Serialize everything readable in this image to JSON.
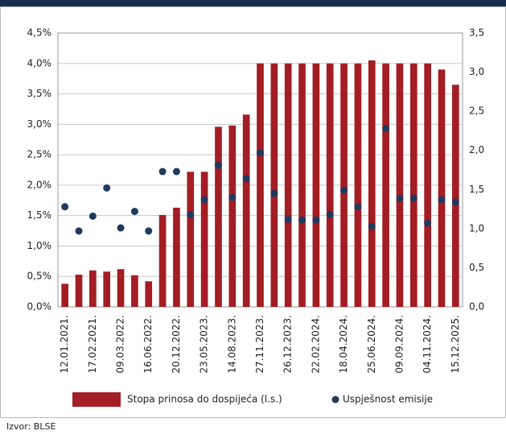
{
  "chart_data": {
    "type": "bar",
    "categories": [
      "12.01.2021.",
      null,
      "17.02.2021.",
      null,
      "09.03.2022.",
      null,
      "16.06.2022.",
      null,
      "20.12.2022.",
      null,
      "23.05.2023.",
      null,
      "14.08.2023.",
      null,
      "27.11.2023.",
      null,
      "26.12.2023.",
      null,
      "22.02.2024.",
      null,
      "18.04.2024.",
      null,
      "25.06.2024.",
      null,
      "09.09.2024.",
      null,
      "04.11.2024.",
      null,
      "15.12.2025."
    ],
    "series": [
      {
        "name": "Stopa prinosa do dospijeća (l.s.)",
        "type": "bar",
        "axis": "y",
        "color": "#a31d24",
        "values": [
          0.38,
          0.53,
          0.6,
          0.58,
          0.62,
          0.52,
          0.42,
          1.51,
          1.63,
          2.22,
          2.22,
          2.96,
          2.98,
          3.16,
          4.0,
          4.0,
          4.0,
          4.0,
          4.0,
          4.0,
          4.0,
          4.0,
          4.05,
          4.0,
          4.0,
          4.0,
          4.0,
          3.9,
          3.65
        ]
      },
      {
        "name": "Uspješnost emisije",
        "type": "scatter",
        "axis": "y2",
        "color": "#1f3a5f",
        "values": [
          1.28,
          0.97,
          1.16,
          1.52,
          1.01,
          1.22,
          0.97,
          1.73,
          1.73,
          1.18,
          1.37,
          1.81,
          1.4,
          1.64,
          1.97,
          1.45,
          1.12,
          1.11,
          1.11,
          1.18,
          1.49,
          1.28,
          1.03,
          2.28,
          1.39,
          1.39,
          1.07,
          1.37,
          1.34
        ]
      }
    ],
    "ylim": [
      0,
      4.5
    ],
    "yticks": [
      {
        "value": 0,
        "label": "0,0%"
      },
      {
        "value": 0.5,
        "label": "0,5%"
      },
      {
        "value": 1,
        "label": "1,0%"
      },
      {
        "value": 1.5,
        "label": "1,5%"
      },
      {
        "value": 2,
        "label": "2,0%"
      },
      {
        "value": 2.5,
        "label": "2,5%"
      },
      {
        "value": 3,
        "label": "3,0%"
      },
      {
        "value": 3.5,
        "label": "3,5%"
      },
      {
        "value": 4,
        "label": "4,0%"
      },
      {
        "value": 4.5,
        "label": "4,5%"
      }
    ],
    "y2lim": [
      0,
      3.5
    ],
    "y2ticks": [
      {
        "value": 0,
        "label": "0,0"
      },
      {
        "value": 0.5,
        "label": "0,5"
      },
      {
        "value": 1,
        "label": "1,0"
      },
      {
        "value": 1.5,
        "label": "1,5"
      },
      {
        "value": 2,
        "label": "2,0"
      },
      {
        "value": 2.5,
        "label": "2,5"
      },
      {
        "value": 3,
        "label": "3,0"
      },
      {
        "value": 3.5,
        "label": "3,5"
      }
    ],
    "grid": true,
    "legend": "bottom",
    "source": "Izvor: BLSE"
  }
}
